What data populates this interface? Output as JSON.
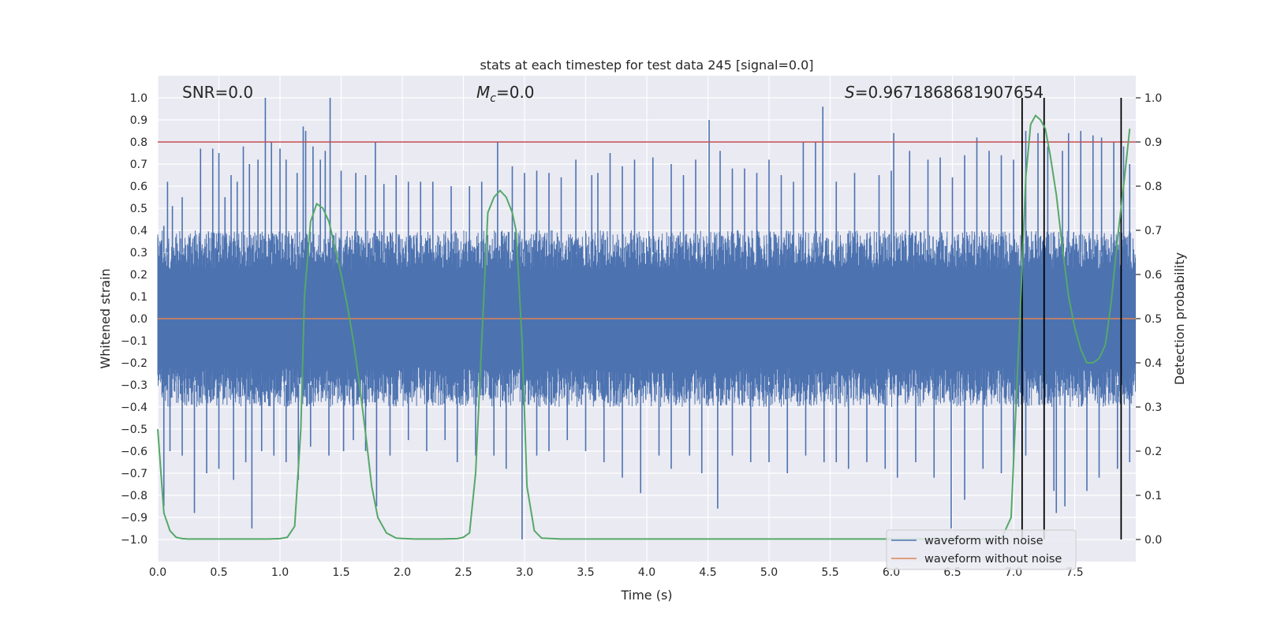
{
  "chart_data": {
    "type": "line",
    "title": "stats at each timestep for test data 245 [signal=0.0]",
    "xlabel": "Time (s)",
    "ylabel_left": "Whitened strain",
    "ylabel_right": "Detection probability",
    "xlim": [
      0.0,
      8.0
    ],
    "ylim_left": [
      -1.1,
      1.1
    ],
    "ylim_right": [
      -0.05,
      1.05
    ],
    "x_ticks": [
      "0.0",
      "0.5",
      "1.0",
      "1.5",
      "2.0",
      "2.5",
      "3.0",
      "3.5",
      "4.0",
      "4.5",
      "5.0",
      "5.5",
      "6.0",
      "6.5",
      "7.0",
      "7.5"
    ],
    "y_ticks_left": [
      "1.0",
      "0.9",
      "0.8",
      "0.7",
      "0.6",
      "0.5",
      "0.4",
      "0.3",
      "0.2",
      "0.1",
      "0.0",
      "−0.1",
      "−0.2",
      "−0.3",
      "−0.4",
      "−0.5",
      "−0.6",
      "−0.7",
      "−0.8",
      "−0.9",
      "−1.0"
    ],
    "y_ticks_right": [
      "1.0",
      "0.9",
      "0.8",
      "0.7",
      "0.6",
      "0.5",
      "0.4",
      "0.3",
      "0.2",
      "0.1",
      "0.0"
    ],
    "annotations": {
      "snr": "SNR=0.0",
      "mc_symbol": "M",
      "mc_sub": "c",
      "mc_value": "=0.0",
      "s_symbol": "S",
      "s_value": "=0.9671868681907654"
    },
    "threshold_strain": 0.8,
    "vertical_lines_s": [
      7.07,
      7.25,
      7.88
    ],
    "series": [
      {
        "name": "waveform with noise",
        "color": "#4c72b0",
        "description": "whitened noisy strain, roughly uniform noise band",
        "band_typical": [
          -0.4,
          0.4
        ],
        "peaks_up": [
          [
            0.05,
            0.42
          ],
          [
            0.08,
            0.62
          ],
          [
            0.12,
            0.51
          ],
          [
            0.2,
            0.55
          ],
          [
            0.35,
            0.77
          ],
          [
            0.45,
            0.77
          ],
          [
            0.5,
            0.75
          ],
          [
            0.55,
            0.55
          ],
          [
            0.6,
            0.65
          ],
          [
            0.65,
            0.62
          ],
          [
            0.7,
            0.78
          ],
          [
            0.75,
            0.7
          ],
          [
            0.82,
            0.72
          ],
          [
            0.88,
            1.0
          ],
          [
            0.93,
            0.8
          ],
          [
            1.0,
            0.77
          ],
          [
            1.05,
            0.72
          ],
          [
            1.14,
            0.66
          ],
          [
            1.19,
            0.87
          ],
          [
            1.21,
            0.85
          ],
          [
            1.27,
            0.78
          ],
          [
            1.33,
            0.72
          ],
          [
            1.37,
            0.76
          ],
          [
            1.41,
            1.0
          ],
          [
            1.5,
            0.67
          ],
          [
            1.62,
            0.66
          ],
          [
            1.7,
            0.65
          ],
          [
            1.78,
            0.8
          ],
          [
            1.85,
            0.61
          ],
          [
            1.95,
            0.65
          ],
          [
            2.05,
            0.62
          ],
          [
            2.15,
            0.62
          ],
          [
            2.25,
            0.62
          ],
          [
            2.4,
            0.6
          ],
          [
            2.55,
            0.6
          ],
          [
            2.65,
            0.62
          ],
          [
            2.78,
            0.8
          ],
          [
            2.9,
            0.69
          ],
          [
            3.0,
            0.66
          ],
          [
            3.1,
            0.67
          ],
          [
            3.2,
            0.66
          ],
          [
            3.3,
            0.64
          ],
          [
            3.42,
            0.72
          ],
          [
            3.55,
            0.65
          ],
          [
            3.6,
            0.66
          ],
          [
            3.7,
            0.75
          ],
          [
            3.8,
            0.69
          ],
          [
            3.9,
            0.72
          ],
          [
            4.05,
            0.73
          ],
          [
            4.2,
            0.7
          ],
          [
            4.3,
            0.65
          ],
          [
            4.4,
            0.72
          ],
          [
            4.51,
            0.9
          ],
          [
            4.6,
            0.76
          ],
          [
            4.7,
            0.68
          ],
          [
            4.8,
            0.68
          ],
          [
            4.9,
            0.66
          ],
          [
            5.0,
            0.72
          ],
          [
            5.1,
            0.65
          ],
          [
            5.2,
            0.62
          ],
          [
            5.28,
            0.8
          ],
          [
            5.38,
            0.8
          ],
          [
            5.44,
            0.96
          ],
          [
            5.55,
            0.62
          ],
          [
            5.7,
            0.66
          ],
          [
            5.9,
            0.65
          ],
          [
            6.0,
            0.67
          ],
          [
            6.02,
            0.84
          ],
          [
            6.15,
            0.76
          ],
          [
            6.3,
            0.72
          ],
          [
            6.4,
            0.73
          ],
          [
            6.5,
            0.64
          ],
          [
            6.6,
            0.74
          ],
          [
            6.7,
            0.82
          ],
          [
            6.8,
            0.76
          ],
          [
            6.9,
            0.74
          ],
          [
            7.0,
            0.72
          ],
          [
            7.1,
            0.85
          ],
          [
            7.2,
            0.84
          ],
          [
            7.28,
            0.78
          ],
          [
            7.4,
            0.76
          ],
          [
            7.45,
            0.84
          ],
          [
            7.55,
            0.85
          ],
          [
            7.65,
            0.83
          ],
          [
            7.72,
            0.82
          ],
          [
            7.82,
            0.8
          ],
          [
            7.9,
            0.78
          ],
          [
            7.95,
            0.7
          ]
        ],
        "peaks_down": [
          [
            0.05,
            -0.85
          ],
          [
            0.1,
            -0.6
          ],
          [
            0.2,
            -0.62
          ],
          [
            0.3,
            -0.88
          ],
          [
            0.4,
            -0.7
          ],
          [
            0.5,
            -0.68
          ],
          [
            0.62,
            -0.73
          ],
          [
            0.72,
            -0.65
          ],
          [
            0.77,
            -0.95
          ],
          [
            0.85,
            -0.6
          ],
          [
            0.95,
            -0.62
          ],
          [
            1.05,
            -0.65
          ],
          [
            1.15,
            -0.73
          ],
          [
            1.25,
            -0.58
          ],
          [
            1.4,
            -0.62
          ],
          [
            1.52,
            -0.6
          ],
          [
            1.6,
            -0.55
          ],
          [
            1.7,
            -0.6
          ],
          [
            1.79,
            -0.85
          ],
          [
            1.9,
            -0.62
          ],
          [
            2.05,
            -0.55
          ],
          [
            2.2,
            -0.6
          ],
          [
            2.35,
            -0.55
          ],
          [
            2.45,
            -0.65
          ],
          [
            2.6,
            -0.62
          ],
          [
            2.75,
            -0.62
          ],
          [
            2.85,
            -0.68
          ],
          [
            2.98,
            -1.0
          ],
          [
            3.1,
            -0.62
          ],
          [
            3.2,
            -0.6
          ],
          [
            3.35,
            -0.55
          ],
          [
            3.5,
            -0.6
          ],
          [
            3.65,
            -0.65
          ],
          [
            3.8,
            -0.72
          ],
          [
            3.95,
            -0.79
          ],
          [
            4.1,
            -0.62
          ],
          [
            4.2,
            -0.68
          ],
          [
            4.35,
            -0.62
          ],
          [
            4.45,
            -0.7
          ],
          [
            4.58,
            -0.86
          ],
          [
            4.7,
            -0.62
          ],
          [
            4.85,
            -0.65
          ],
          [
            5.0,
            -0.65
          ],
          [
            5.15,
            -0.7
          ],
          [
            5.3,
            -0.62
          ],
          [
            5.45,
            -0.65
          ],
          [
            5.55,
            -0.65
          ],
          [
            5.65,
            -0.68
          ],
          [
            5.8,
            -0.65
          ],
          [
            5.95,
            -0.68
          ],
          [
            6.05,
            -0.72
          ],
          [
            6.2,
            -0.65
          ],
          [
            6.35,
            -0.72
          ],
          [
            6.49,
            -0.95
          ],
          [
            6.6,
            -0.82
          ],
          [
            6.75,
            -0.68
          ],
          [
            6.9,
            -0.7
          ],
          [
            7.0,
            -0.65
          ],
          [
            7.1,
            -0.62
          ],
          [
            7.25,
            -0.72
          ],
          [
            7.33,
            -0.78
          ],
          [
            7.35,
            -0.88
          ],
          [
            7.42,
            -0.85
          ],
          [
            7.6,
            -0.78
          ],
          [
            7.7,
            -0.72
          ],
          [
            7.85,
            -0.68
          ],
          [
            7.95,
            -0.65
          ]
        ]
      },
      {
        "name": "waveform without noise",
        "color": "#dd8452",
        "description": "zero injected signal",
        "x": [
          0.0,
          8.0
        ],
        "y": [
          0.0,
          0.0
        ]
      },
      {
        "name": "detection probability",
        "color": "#55a868",
        "axis": "right",
        "x": [
          0.0,
          0.05,
          0.1,
          0.15,
          0.2,
          0.25,
          0.3,
          0.5,
          0.7,
          0.9,
          1.0,
          1.06,
          1.12,
          1.17,
          1.2,
          1.25,
          1.3,
          1.35,
          1.4,
          1.45,
          1.5,
          1.55,
          1.6,
          1.65,
          1.7,
          1.75,
          1.8,
          1.87,
          1.95,
          2.1,
          2.3,
          2.45,
          2.5,
          2.55,
          2.6,
          2.65,
          2.7,
          2.75,
          2.8,
          2.85,
          2.9,
          2.93,
          2.98,
          3.02,
          3.08,
          3.14,
          3.3,
          3.6,
          4.0,
          4.5,
          5.0,
          5.5,
          6.0,
          6.5,
          6.9,
          6.98,
          7.02,
          7.06,
          7.1,
          7.14,
          7.18,
          7.22,
          7.26,
          7.3,
          7.35,
          7.4,
          7.45,
          7.5,
          7.55,
          7.6,
          7.65,
          7.7,
          7.75,
          7.8,
          7.85,
          7.9,
          7.95
        ],
        "y": [
          0.25,
          0.06,
          0.02,
          0.005,
          0.002,
          0.001,
          0.001,
          0.001,
          0.001,
          0.001,
          0.002,
          0.005,
          0.03,
          0.25,
          0.55,
          0.72,
          0.76,
          0.75,
          0.72,
          0.66,
          0.6,
          0.53,
          0.45,
          0.35,
          0.24,
          0.12,
          0.05,
          0.015,
          0.003,
          0.001,
          0.001,
          0.002,
          0.005,
          0.015,
          0.15,
          0.45,
          0.74,
          0.775,
          0.79,
          0.775,
          0.74,
          0.7,
          0.45,
          0.12,
          0.02,
          0.003,
          0.001,
          0.001,
          0.001,
          0.001,
          0.001,
          0.001,
          0.001,
          0.001,
          0.001,
          0.05,
          0.3,
          0.55,
          0.82,
          0.94,
          0.96,
          0.95,
          0.93,
          0.87,
          0.78,
          0.66,
          0.55,
          0.48,
          0.43,
          0.4,
          0.4,
          0.41,
          0.44,
          0.54,
          0.68,
          0.8,
          0.93
        ]
      }
    ],
    "legend": {
      "placement": "lower-right",
      "entries": [
        "waveform with noise",
        "waveform without noise"
      ]
    },
    "style": {
      "plot_bg": "#eaeaf2",
      "grid_color": "#ffffff",
      "threshold_color": "#c44e52",
      "vline_color": "#000000"
    }
  }
}
